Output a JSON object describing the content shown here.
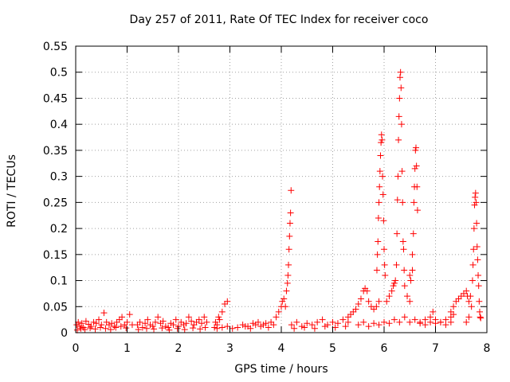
{
  "chart_data": {
    "type": "scatter",
    "title": "Day 257 of 2011, Rate Of TEC Index for receiver coco",
    "xlabel": "GPS time / hours",
    "ylabel": "ROTI / TECUs",
    "xlim": [
      0,
      8
    ],
    "ylim": [
      0,
      0.55
    ],
    "xticks": [
      "0",
      "1",
      "2",
      "3",
      "4",
      "5",
      "6",
      "7",
      "8"
    ],
    "yticks": [
      "0",
      "0.05",
      "0.1",
      "0.15",
      "0.2",
      "0.25",
      "0.3",
      "0.35",
      "0.4",
      "0.45",
      "0.5",
      "0.55"
    ],
    "grid": true,
    "marker": "+",
    "color": "#ff0000",
    "series": [
      {
        "points": [
          [
            0.02,
            0.015
          ],
          [
            0.05,
            0.02
          ],
          [
            0.08,
            0.012
          ],
          [
            0.12,
            0.018
          ],
          [
            0.15,
            0.01
          ],
          [
            0.2,
            0.022
          ],
          [
            0.25,
            0.016
          ],
          [
            0.3,
            0.012
          ],
          [
            0.35,
            0.02
          ],
          [
            0.4,
            0.018
          ],
          [
            0.45,
            0.025
          ],
          [
            0.5,
            0.015
          ],
          [
            0.55,
            0.038
          ],
          [
            0.6,
            0.02
          ],
          [
            0.65,
            0.015
          ],
          [
            0.7,
            0.018
          ],
          [
            0.75,
            0.012
          ],
          [
            0.8,
            0.02
          ],
          [
            0.85,
            0.025
          ],
          [
            0.9,
            0.03
          ],
          [
            0.95,
            0.015
          ],
          [
            1.0,
            0.02
          ],
          [
            1.05,
            0.035
          ],
          [
            1.1,
            0.015
          ],
          [
            0.03,
            0.005
          ],
          [
            0.1,
            0.008
          ],
          [
            0.18,
            0.006
          ],
          [
            0.28,
            0.009
          ],
          [
            0.38,
            0.007
          ],
          [
            0.48,
            0.01
          ],
          [
            0.58,
            0.008
          ],
          [
            0.68,
            0.006
          ],
          [
            0.78,
            0.01
          ],
          [
            0.88,
            0.012
          ],
          [
            0.98,
            0.009
          ],
          [
            1.2,
            0.015
          ],
          [
            1.25,
            0.02
          ],
          [
            1.3,
            0.01
          ],
          [
            1.35,
            0.018
          ],
          [
            1.4,
            0.025
          ],
          [
            1.45,
            0.015
          ],
          [
            1.5,
            0.012
          ],
          [
            1.55,
            0.02
          ],
          [
            1.6,
            0.03
          ],
          [
            1.65,
            0.018
          ],
          [
            1.7,
            0.022
          ],
          [
            1.75,
            0.012
          ],
          [
            1.8,
            0.01
          ],
          [
            1.85,
            0.018
          ],
          [
            1.9,
            0.015
          ],
          [
            1.95,
            0.025
          ],
          [
            2.0,
            0.012
          ],
          [
            2.05,
            0.02
          ],
          [
            2.1,
            0.015
          ],
          [
            2.15,
            0.018
          ],
          [
            2.2,
            0.03
          ],
          [
            2.25,
            0.022
          ],
          [
            2.3,
            0.015
          ],
          [
            2.35,
            0.02
          ],
          [
            2.4,
            0.025
          ],
          [
            2.45,
            0.018
          ],
          [
            2.5,
            0.03
          ],
          [
            2.55,
            0.02
          ],
          [
            1.22,
            0.006
          ],
          [
            1.38,
            0.008
          ],
          [
            1.52,
            0.007
          ],
          [
            1.68,
            0.009
          ],
          [
            1.82,
            0.005
          ],
          [
            1.98,
            0.008
          ],
          [
            2.12,
            0.006
          ],
          [
            2.28,
            0.009
          ],
          [
            2.42,
            0.007
          ],
          [
            2.52,
            0.01
          ],
          [
            2.7,
            0.01
          ],
          [
            2.75,
            0.015
          ],
          [
            2.8,
            0.025
          ],
          [
            2.85,
            0.04
          ],
          [
            2.9,
            0.055
          ],
          [
            2.95,
            0.06
          ],
          [
            2.72,
            0.02
          ],
          [
            2.78,
            0.03
          ],
          [
            2.75,
            0.008
          ],
          [
            2.85,
            0.01
          ],
          [
            2.95,
            0.012
          ],
          [
            3.05,
            0.008
          ],
          [
            3.15,
            0.01
          ],
          [
            3.25,
            0.015
          ],
          [
            3.35,
            0.012
          ],
          [
            3.45,
            0.018
          ],
          [
            3.55,
            0.02
          ],
          [
            3.65,
            0.015
          ],
          [
            3.75,
            0.01
          ],
          [
            3.85,
            0.015
          ],
          [
            3.3,
            0.012
          ],
          [
            3.4,
            0.008
          ],
          [
            3.5,
            0.015
          ],
          [
            3.6,
            0.012
          ],
          [
            3.7,
            0.018
          ],
          [
            3.8,
            0.02
          ],
          [
            3.9,
            0.03
          ],
          [
            3.95,
            0.04
          ],
          [
            4.0,
            0.05
          ],
          [
            4.02,
            0.06
          ],
          [
            4.05,
            0.065
          ],
          [
            4.08,
            0.05
          ],
          [
            4.1,
            0.08
          ],
          [
            4.12,
            0.095
          ],
          [
            4.13,
            0.11
          ],
          [
            4.14,
            0.13
          ],
          [
            4.15,
            0.16
          ],
          [
            4.16,
            0.185
          ],
          [
            4.17,
            0.21
          ],
          [
            4.18,
            0.23
          ],
          [
            4.19,
            0.273
          ],
          [
            4.2,
            0.015
          ],
          [
            4.3,
            0.02
          ],
          [
            4.4,
            0.012
          ],
          [
            4.5,
            0.018
          ],
          [
            4.6,
            0.015
          ],
          [
            4.7,
            0.02
          ],
          [
            4.8,
            0.025
          ],
          [
            4.9,
            0.015
          ],
          [
            5.0,
            0.02
          ],
          [
            5.1,
            0.018
          ],
          [
            5.2,
            0.025
          ],
          [
            5.3,
            0.02
          ],
          [
            4.25,
            0.008
          ],
          [
            4.45,
            0.01
          ],
          [
            4.65,
            0.008
          ],
          [
            4.85,
            0.012
          ],
          [
            5.05,
            0.01
          ],
          [
            5.25,
            0.012
          ],
          [
            5.3,
            0.03
          ],
          [
            5.35,
            0.035
          ],
          [
            5.4,
            0.04
          ],
          [
            5.45,
            0.045
          ],
          [
            5.5,
            0.055
          ],
          [
            5.55,
            0.065
          ],
          [
            5.6,
            0.08
          ],
          [
            5.63,
            0.085
          ],
          [
            5.67,
            0.08
          ],
          [
            5.7,
            0.06
          ],
          [
            5.75,
            0.05
          ],
          [
            5.8,
            0.045
          ],
          [
            5.85,
            0.05
          ],
          [
            5.9,
            0.06
          ],
          [
            5.5,
            0.015
          ],
          [
            5.6,
            0.02
          ],
          [
            5.7,
            0.012
          ],
          [
            5.8,
            0.018
          ],
          [
            5.9,
            0.015
          ],
          [
            6.0,
            0.02
          ],
          [
            6.1,
            0.018
          ],
          [
            6.2,
            0.025
          ],
          [
            6.3,
            0.02
          ],
          [
            6.4,
            0.03
          ],
          [
            6.5,
            0.02
          ],
          [
            6.6,
            0.025
          ],
          [
            6.7,
            0.018
          ],
          [
            6.8,
            0.015
          ],
          [
            6.9,
            0.02
          ],
          [
            7.0,
            0.018
          ],
          [
            7.1,
            0.02
          ],
          [
            7.2,
            0.015
          ],
          [
            7.3,
            0.02
          ],
          [
            5.86,
            0.12
          ],
          [
            5.87,
            0.15
          ],
          [
            5.88,
            0.175
          ],
          [
            5.89,
            0.22
          ],
          [
            5.9,
            0.25
          ],
          [
            5.91,
            0.28
          ],
          [
            5.92,
            0.31
          ],
          [
            5.93,
            0.34
          ],
          [
            5.94,
            0.365
          ],
          [
            5.95,
            0.38
          ],
          [
            5.96,
            0.37
          ],
          [
            5.97,
            0.3
          ],
          [
            5.98,
            0.265
          ],
          [
            5.99,
            0.215
          ],
          [
            6.0,
            0.16
          ],
          [
            6.01,
            0.13
          ],
          [
            6.02,
            0.11
          ],
          [
            6.05,
            0.06
          ],
          [
            6.1,
            0.07
          ],
          [
            6.15,
            0.08
          ],
          [
            6.18,
            0.09
          ],
          [
            6.2,
            0.095
          ],
          [
            6.22,
            0.1
          ],
          [
            6.24,
            0.13
          ],
          [
            6.25,
            0.19
          ],
          [
            6.26,
            0.255
          ],
          [
            6.27,
            0.3
          ],
          [
            6.28,
            0.37
          ],
          [
            6.29,
            0.415
          ],
          [
            6.3,
            0.45
          ],
          [
            6.31,
            0.49
          ],
          [
            6.32,
            0.5
          ],
          [
            6.33,
            0.47
          ],
          [
            6.34,
            0.4
          ],
          [
            6.35,
            0.31
          ],
          [
            6.36,
            0.25
          ],
          [
            6.37,
            0.175
          ],
          [
            6.38,
            0.16
          ],
          [
            6.39,
            0.12
          ],
          [
            6.4,
            0.09
          ],
          [
            6.45,
            0.07
          ],
          [
            6.5,
            0.06
          ],
          [
            6.52,
            0.1
          ],
          [
            6.55,
            0.15
          ],
          [
            6.57,
            0.19
          ],
          [
            6.58,
            0.25
          ],
          [
            6.59,
            0.28
          ],
          [
            6.6,
            0.315
          ],
          [
            6.61,
            0.35
          ],
          [
            6.62,
            0.355
          ],
          [
            6.63,
            0.32
          ],
          [
            6.64,
            0.28
          ],
          [
            6.65,
            0.235
          ],
          [
            6.5,
            0.11
          ],
          [
            6.55,
            0.12
          ],
          [
            6.7,
            0.02
          ],
          [
            6.8,
            0.025
          ],
          [
            6.9,
            0.03
          ],
          [
            6.95,
            0.04
          ],
          [
            7.0,
            0.025
          ],
          [
            7.1,
            0.02
          ],
          [
            7.2,
            0.025
          ],
          [
            7.3,
            0.03
          ],
          [
            7.35,
            0.035
          ],
          [
            7.3,
            0.04
          ],
          [
            7.35,
            0.05
          ],
          [
            7.4,
            0.06
          ],
          [
            7.45,
            0.065
          ],
          [
            7.5,
            0.07
          ],
          [
            7.55,
            0.075
          ],
          [
            7.6,
            0.08
          ],
          [
            7.62,
            0.07
          ],
          [
            7.65,
            0.06
          ],
          [
            7.68,
            0.07
          ],
          [
            7.6,
            0.02
          ],
          [
            7.65,
            0.03
          ],
          [
            7.7,
            0.05
          ],
          [
            7.72,
            0.1
          ],
          [
            7.73,
            0.13
          ],
          [
            7.74,
            0.16
          ],
          [
            7.75,
            0.2
          ],
          [
            7.76,
            0.245
          ],
          [
            7.77,
            0.26
          ],
          [
            7.78,
            0.268
          ],
          [
            7.79,
            0.25
          ],
          [
            7.8,
            0.21
          ],
          [
            7.81,
            0.165
          ],
          [
            7.82,
            0.14
          ],
          [
            7.83,
            0.11
          ],
          [
            7.84,
            0.09
          ],
          [
            7.85,
            0.06
          ],
          [
            7.86,
            0.04
          ],
          [
            7.87,
            0.03
          ],
          [
            7.88,
            0.028
          ]
        ]
      }
    ]
  }
}
